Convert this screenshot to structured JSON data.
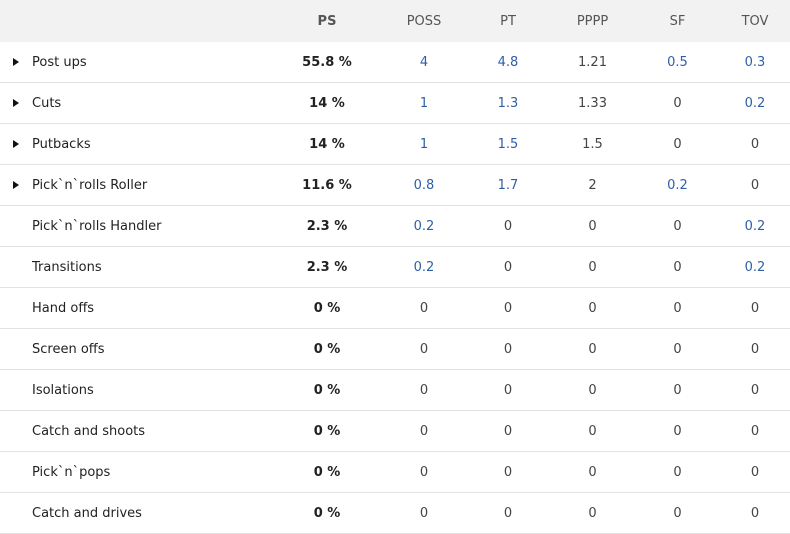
{
  "headers": {
    "name": "",
    "ps": "PS",
    "poss": "POSS",
    "pt": "PT",
    "pppp": "PPPP",
    "sf": "SF",
    "tov": "TOV"
  },
  "colors": {
    "link_blue": "#2f5fa8",
    "header_bg": "#f2f2f2",
    "divider": "#e2e2e2"
  },
  "rows": [
    {
      "name": "Post ups",
      "expandable": true,
      "ps": "55.8 %",
      "poss": "4",
      "pt": "4.8",
      "pppp": "1.21",
      "sf": "0.5",
      "tov": "0.3"
    },
    {
      "name": "Cuts",
      "expandable": true,
      "ps": "14 %",
      "poss": "1",
      "pt": "1.3",
      "pppp": "1.33",
      "sf": "0",
      "tov": "0.2"
    },
    {
      "name": "Putbacks",
      "expandable": true,
      "ps": "14 %",
      "poss": "1",
      "pt": "1.5",
      "pppp": "1.5",
      "sf": "0",
      "tov": "0"
    },
    {
      "name": "Pick`n`rolls Roller",
      "expandable": true,
      "ps": "11.6 %",
      "poss": "0.8",
      "pt": "1.7",
      "pppp": "2",
      "sf": "0.2",
      "tov": "0"
    },
    {
      "name": "Pick`n`rolls Handler",
      "expandable": false,
      "ps": "2.3 %",
      "poss": "0.2",
      "pt": "0",
      "pppp": "0",
      "sf": "0",
      "tov": "0.2"
    },
    {
      "name": "Transitions",
      "expandable": false,
      "ps": "2.3 %",
      "poss": "0.2",
      "pt": "0",
      "pppp": "0",
      "sf": "0",
      "tov": "0.2"
    },
    {
      "name": "Hand offs",
      "expandable": false,
      "ps": "0 %",
      "poss": "0",
      "pt": "0",
      "pppp": "0",
      "sf": "0",
      "tov": "0"
    },
    {
      "name": "Screen offs",
      "expandable": false,
      "ps": "0 %",
      "poss": "0",
      "pt": "0",
      "pppp": "0",
      "sf": "0",
      "tov": "0"
    },
    {
      "name": "Isolations",
      "expandable": false,
      "ps": "0 %",
      "poss": "0",
      "pt": "0",
      "pppp": "0",
      "sf": "0",
      "tov": "0"
    },
    {
      "name": "Catch and shoots",
      "expandable": false,
      "ps": "0 %",
      "poss": "0",
      "pt": "0",
      "pppp": "0",
      "sf": "0",
      "tov": "0"
    },
    {
      "name": "Pick`n`pops",
      "expandable": false,
      "ps": "0 %",
      "poss": "0",
      "pt": "0",
      "pppp": "0",
      "sf": "0",
      "tov": "0"
    },
    {
      "name": "Catch and drives",
      "expandable": false,
      "ps": "0 %",
      "poss": "0",
      "pt": "0",
      "pppp": "0",
      "sf": "0",
      "tov": "0"
    }
  ]
}
